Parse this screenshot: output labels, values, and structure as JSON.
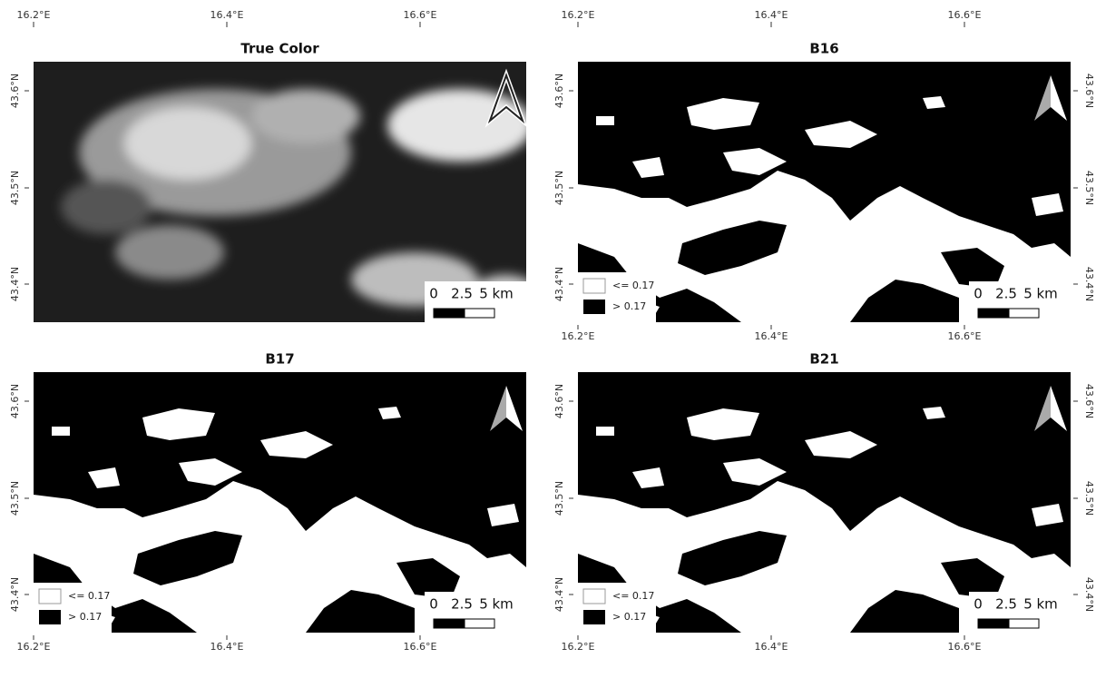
{
  "longitude_labels": [
    "16.2°E",
    "16.4°E",
    "16.6°E"
  ],
  "latitude_labels": [
    "43.6°N",
    "43.5°N",
    "43.4°N"
  ],
  "scale_bar": [
    "0",
    "2.5",
    "5 km"
  ],
  "legend": [
    "<= 0.17",
    "> 0.17"
  ],
  "panels": [
    {
      "title": "True Color"
    },
    {
      "title": "B16"
    },
    {
      "title": "B17"
    },
    {
      "title": "B21"
    }
  ]
}
